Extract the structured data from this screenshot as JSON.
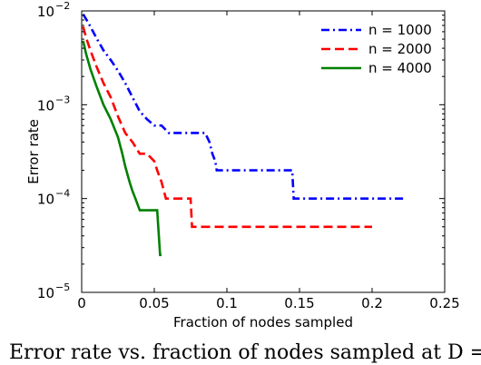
{
  "chart_data": {
    "type": "line",
    "title": "",
    "xlabel": "Fraction of nodes sampled",
    "ylabel": "Error rate",
    "xlim": [
      0,
      0.25
    ],
    "ylim": [
      1e-05,
      0.01
    ],
    "yscale": "log",
    "xticks": [
      0,
      0.05,
      0.1,
      0.15,
      0.2,
      0.25
    ],
    "xtick_labels": [
      "0",
      "0.05",
      "0.1",
      "0.15",
      "0.2",
      "0.25"
    ],
    "yticks": [
      1e-05,
      0.0001,
      0.001,
      0.01
    ],
    "ytick_bases": [
      "10",
      "10",
      "10",
      "10"
    ],
    "ytick_exponents": [
      "−5",
      "−4",
      "−3",
      "−2"
    ],
    "legend_position": "top-right",
    "grid": false,
    "series": [
      {
        "name": "n = 1000",
        "color": "#0000ff",
        "dash": "dash-dot",
        "x": [
          0.001,
          0.003,
          0.006,
          0.01,
          0.015,
          0.02,
          0.025,
          0.03,
          0.035,
          0.04,
          0.045,
          0.05,
          0.055,
          0.06,
          0.065,
          0.07,
          0.075,
          0.08,
          0.085,
          0.088,
          0.09,
          0.092,
          0.093,
          0.095,
          0.1,
          0.12,
          0.14,
          0.145,
          0.146,
          0.15,
          0.2,
          0.222
        ],
        "y": [
          0.0092,
          0.0082,
          0.0068,
          0.0052,
          0.0038,
          0.003,
          0.0023,
          0.0017,
          0.0012,
          0.00085,
          0.0007,
          0.0006,
          0.0006,
          0.0005,
          0.0005,
          0.0005,
          0.0005,
          0.0005,
          0.0005,
          0.0004,
          0.0003,
          0.00025,
          0.0002,
          0.0002,
          0.0002,
          0.0002,
          0.0002,
          0.0002,
          0.0001,
          0.0001,
          0.0001,
          0.0001
        ]
      },
      {
        "name": "n = 2000",
        "color": "#ff0000",
        "dash": "dashed",
        "x": [
          0.001,
          0.003,
          0.006,
          0.01,
          0.015,
          0.02,
          0.025,
          0.03,
          0.035,
          0.04,
          0.045,
          0.05,
          0.052,
          0.055,
          0.058,
          0.06,
          0.065,
          0.07,
          0.075,
          0.076,
          0.08,
          0.1,
          0.15,
          0.2
        ],
        "y": [
          0.0068,
          0.0052,
          0.0038,
          0.0026,
          0.0017,
          0.0012,
          0.00075,
          0.0005,
          0.0004,
          0.0003,
          0.0003,
          0.00025,
          0.0002,
          0.00015,
          0.0001,
          0.0001,
          0.0001,
          0.0001,
          0.0001,
          5e-05,
          5e-05,
          5e-05,
          5e-05,
          5e-05
        ]
      },
      {
        "name": "n = 4000",
        "color": "#008000",
        "dash": "solid",
        "x": [
          0.001,
          0.003,
          0.006,
          0.01,
          0.015,
          0.02,
          0.025,
          0.028,
          0.03,
          0.033,
          0.035,
          0.037,
          0.04,
          0.045,
          0.05,
          0.052,
          0.054,
          0.055
        ],
        "y": [
          0.0048,
          0.0035,
          0.0024,
          0.0016,
          0.001,
          0.0007,
          0.00045,
          0.0003,
          0.00022,
          0.00015,
          0.00012,
          0.0001,
          7.5e-05,
          7.5e-05,
          7.5e-05,
          7.5e-05,
          2.5e-05,
          2.5e-05
        ]
      }
    ]
  },
  "caption": "Error rate vs. fraction of nodes sampled at D ="
}
